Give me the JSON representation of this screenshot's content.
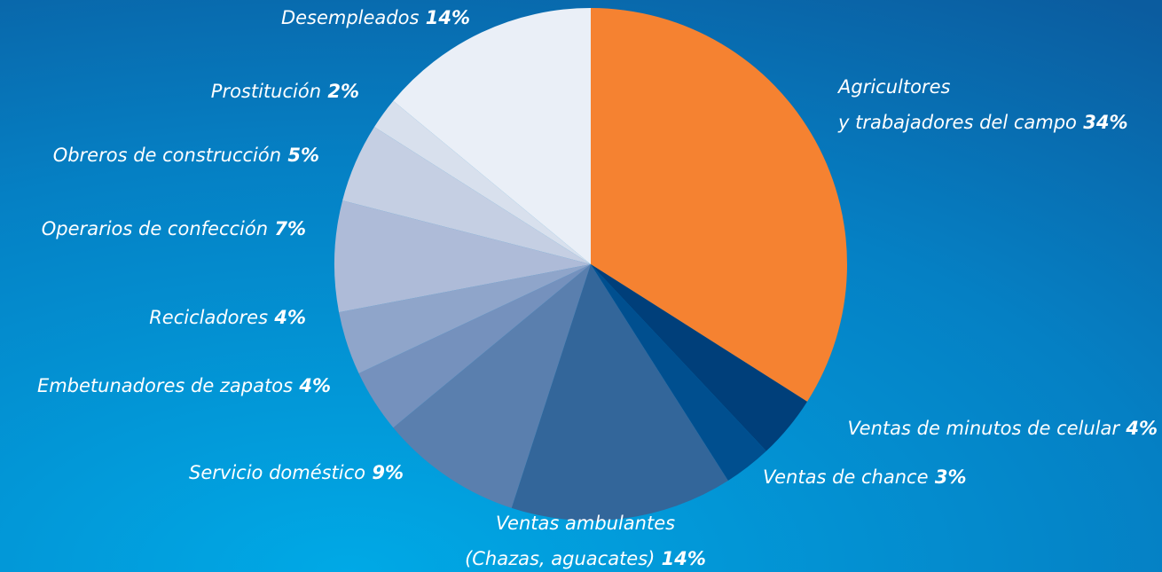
{
  "chart_data": {
    "type": "pie",
    "categories": [
      "Agricultores\ny trabajadores del campo",
      "Ventas de minutos de celular",
      "Ventas de chance",
      "Ventas ambulantes\n(Chazas, aguacates)",
      "Servicio doméstico",
      "Embetunadores de zapatos",
      "Recicladores",
      "Operarios de confección",
      "Obreros de construcción",
      "Prostitución",
      "Desempleados"
    ],
    "values": [
      34,
      4,
      3,
      14,
      9,
      4,
      4,
      7,
      5,
      2,
      14
    ],
    "value_labels": [
      "34%",
      "4%",
      "3%",
      "14%",
      "9%",
      "4%",
      "4%",
      "7%",
      "5%",
      "2%",
      "14%"
    ],
    "colors": [
      "#f58231",
      "#003f7a",
      "#004f8f",
      "#33669a",
      "#5a7fae",
      "#7591bd",
      "#8fa5ca",
      "#aebbd8",
      "#c5cfe3",
      "#d8e0ed",
      "#eaeff7"
    ]
  }
}
